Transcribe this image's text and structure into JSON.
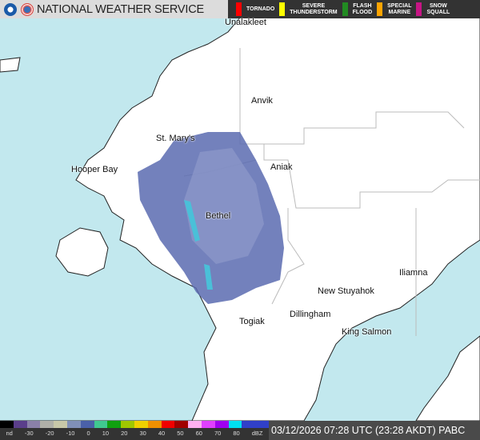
{
  "header": {
    "title": "NATIONAL WEATHER SERVICE",
    "logos": [
      "noaa-logo",
      "nws-logo"
    ]
  },
  "warnings_legend": [
    {
      "label_lines": [
        "TORNADO"
      ],
      "color": "#ff0000"
    },
    {
      "label_lines": [
        "SEVERE",
        "THUNDERSTORM"
      ],
      "color": "#ffff00"
    },
    {
      "label_lines": [
        "FLASH",
        "FLOOD"
      ],
      "color": "#228b22"
    },
    {
      "label_lines": [
        "SPECIAL",
        "MARINE"
      ],
      "color": "#ffa500"
    },
    {
      "label_lines": [
        "SNOW",
        "SQUALL"
      ],
      "color": "#c71585"
    }
  ],
  "map": {
    "water_color": "#c2e8ee",
    "land_color": "#ffffff",
    "radar_color": "#5a6bb0",
    "cities": [
      {
        "name": "Unalakleet"
      },
      {
        "name": "Anvik"
      },
      {
        "name": "St. Mary's"
      },
      {
        "name": "Hooper Bay"
      },
      {
        "name": "Aniak"
      },
      {
        "name": "Bethel"
      },
      {
        "name": "Iliamna"
      },
      {
        "name": "New Stuyahok"
      },
      {
        "name": "Dillingham"
      },
      {
        "name": "Togiak"
      },
      {
        "name": "King Salmon"
      }
    ]
  },
  "footer": {
    "scale_labels": [
      "nd",
      "-30",
      "-20",
      "-10",
      "0",
      "10",
      "20",
      "30",
      "40",
      "50",
      "60",
      "70",
      "80",
      "dBZ"
    ],
    "timestamp": "03/12/2026 07:28 UTC (23:28 AKDT)",
    "station": "PABC"
  }
}
